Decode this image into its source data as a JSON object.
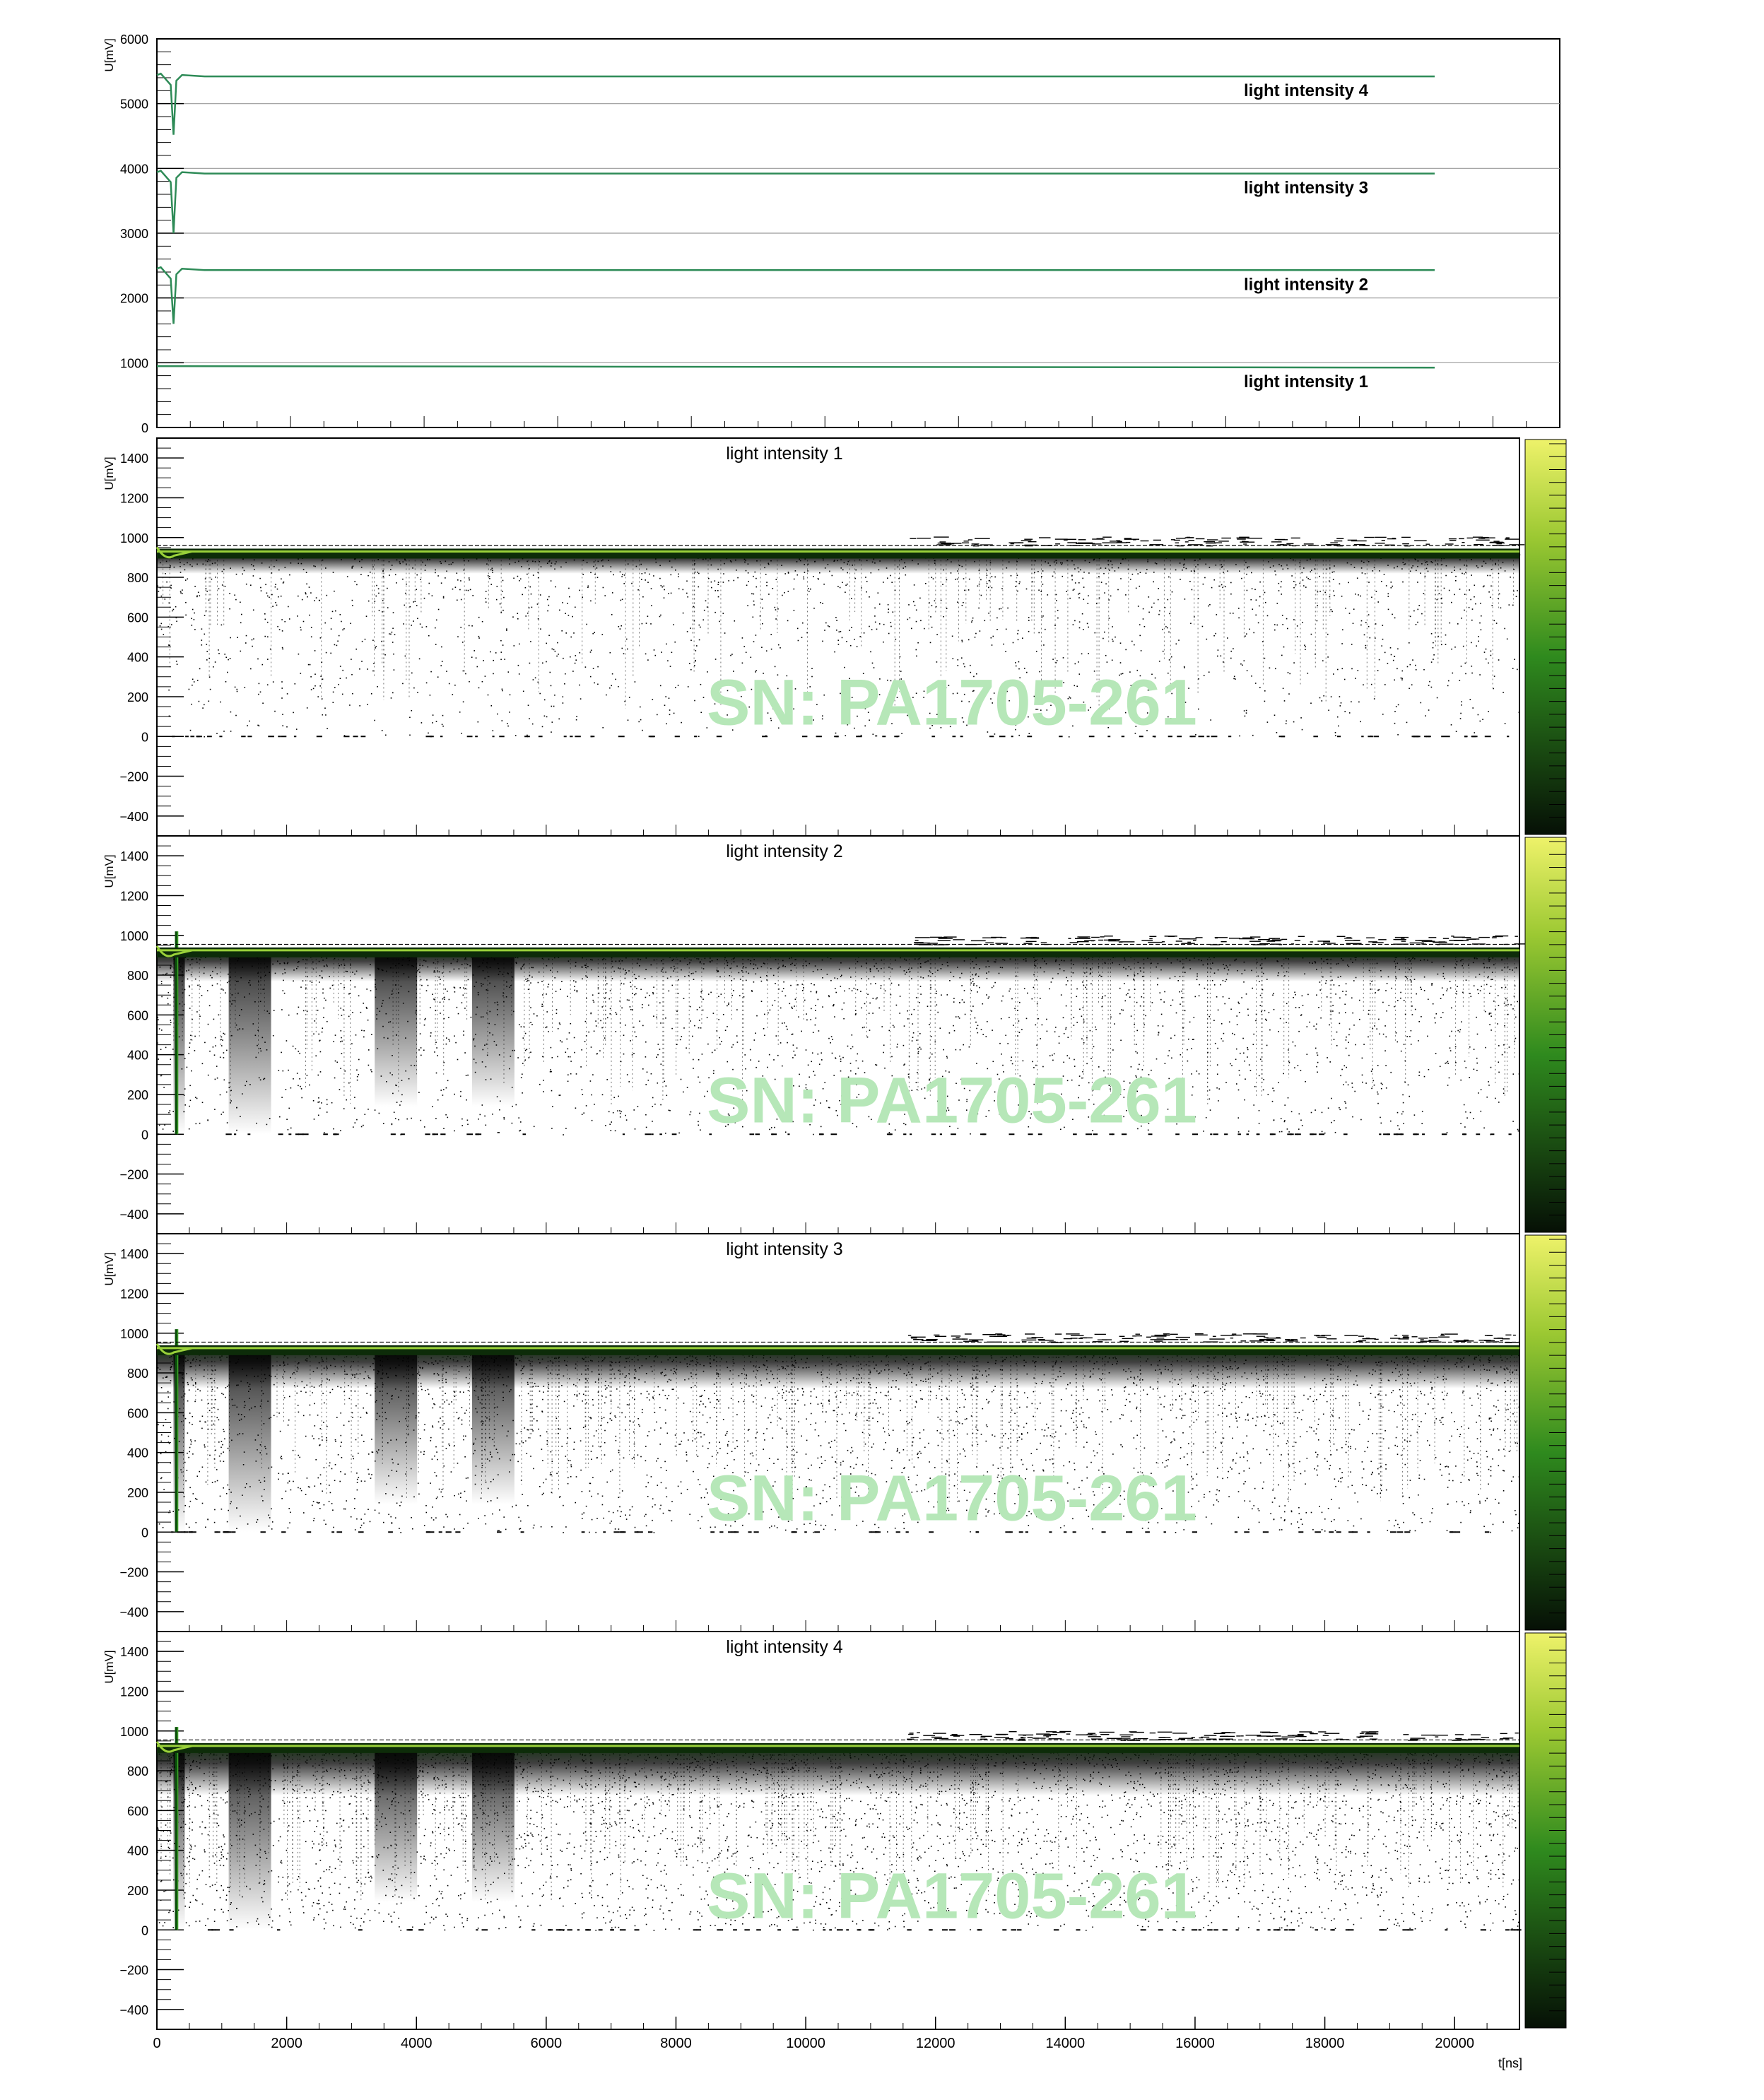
{
  "colors": {
    "background": "#ffffff",
    "axis": "#000000",
    "gridline": "#9a9a9a",
    "trace": "#2e8b57",
    "watermark": "#b6e7b8",
    "colorbar_top": "#eef26a",
    "colorbar_mid": "#3c9a24",
    "colorbar_bottom": "#061006"
  },
  "chart_data": [
    {
      "type": "line",
      "xlabel": "",
      "ylabel": "U[mV]",
      "ylim": [
        0,
        6000
      ],
      "y_ticks": [
        "0",
        "1000",
        "2000",
        "3000",
        "4000",
        "5000",
        "6000"
      ],
      "grid": true,
      "series": [
        {
          "name": "light intensity 1",
          "baseline": 925,
          "dip_min": null
        },
        {
          "name": "light intensity 2",
          "baseline": 2430,
          "dip_min": 1600
        },
        {
          "name": "light intensity 3",
          "baseline": 3920,
          "dip_min": 3000
        },
        {
          "name": "light intensity 4",
          "baseline": 5420,
          "dip_min": 4520
        }
      ],
      "dip_time": 300
    },
    {
      "type": "heatmap",
      "title": "light intensity 1",
      "ylabel": "U[mV]",
      "ylim": [
        -500,
        1500
      ],
      "y_ticks": [
        "−400",
        "−200",
        "0",
        "200",
        "400",
        "600",
        "800",
        "1000",
        "1200",
        "1400"
      ],
      "baseline": 930,
      "bands": [],
      "watermark": "SN: PA1705-261"
    },
    {
      "type": "heatmap",
      "title": "light intensity 2",
      "ylabel": "U[mV]",
      "ylim": [
        -500,
        1500
      ],
      "y_ticks": [
        "−400",
        "−200",
        "0",
        "200",
        "400",
        "600",
        "800",
        "1000",
        "1200",
        "1400"
      ],
      "baseline": 925,
      "bands": [
        300,
        1150,
        3400,
        4900
      ],
      "watermark": "SN: PA1705-261"
    },
    {
      "type": "heatmap",
      "title": "light intensity 3",
      "ylabel": "U[mV]",
      "ylim": [
        -500,
        1500
      ],
      "y_ticks": [
        "−400",
        "−200",
        "0",
        "200",
        "400",
        "600",
        "800",
        "1000",
        "1200",
        "1400"
      ],
      "baseline": 925,
      "bands": [
        300,
        1150,
        3400,
        4900
      ],
      "watermark": "SN: PA1705-261"
    },
    {
      "type": "heatmap",
      "title": "light intensity 4",
      "ylabel": "U[mV]",
      "xlabel": "t[ns]",
      "ylim": [
        -500,
        1500
      ],
      "xlim": [
        0,
        21000
      ],
      "x_ticks": [
        "0",
        "2000",
        "4000",
        "6000",
        "8000",
        "10000",
        "12000",
        "14000",
        "16000",
        "18000",
        "20000"
      ],
      "y_ticks": [
        "−400",
        "−200",
        "0",
        "200",
        "400",
        "600",
        "800",
        "1000",
        "1200",
        "1400"
      ],
      "baseline": 925,
      "bands": [
        300,
        1150,
        3400,
        4900
      ],
      "watermark": "SN: PA1705-261"
    }
  ]
}
